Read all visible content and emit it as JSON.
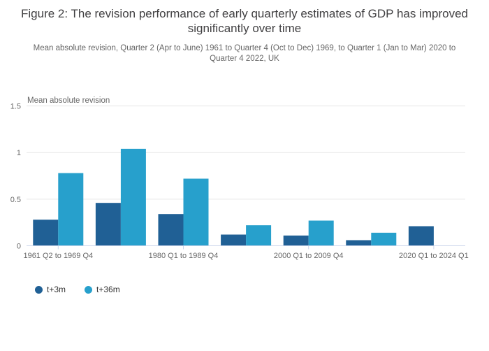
{
  "colors": {
    "series_dark_blue": "#206095",
    "series_light_blue": "#27a0cc",
    "axis_line": "#ccd6eb",
    "grid_line": "#e6e6e6",
    "tick_label": "#666666",
    "title_text": "#414042",
    "subtitle_text": "#666666",
    "legend_text": "#333333",
    "background": "#ffffff"
  },
  "chart_data": {
    "type": "bar",
    "title": "Figure 2: The revision performance of early quarterly estimates of GDP has improved significantly over time",
    "subtitle": "Mean absolute revision, Quarter 2 (Apr to June) 1961 to Quarter 4 (Oct to Dec) 1969, to Quarter 1 (Jan to Mar) 2020 to Quarter 4 2022, UK",
    "ylabel": "Mean absolute revision",
    "xlabel": "",
    "ylim": [
      0,
      1.5
    ],
    "y_ticks": [
      0,
      0.5,
      1,
      1.5
    ],
    "y_tick_labels": [
      "0",
      "0.5",
      "1",
      "1.5"
    ],
    "grid": true,
    "legend_position": "bottom-left",
    "categories": [
      "1961 Q2 to 1969 Q4",
      "",
      "1980 Q1 to 1989 Q4",
      "",
      "2000 Q1 to 2009 Q4",
      "",
      "2020 Q1 to 2024 Q1"
    ],
    "series": [
      {
        "name": "t+3m",
        "color": "#206095",
        "values": [
          0.28,
          0.46,
          0.34,
          0.12,
          0.11,
          0.06,
          0.21
        ]
      },
      {
        "name": "t+36m",
        "color": "#27a0cc",
        "values": [
          0.78,
          1.04,
          0.72,
          0.22,
          0.27,
          0.14,
          null
        ]
      }
    ]
  }
}
